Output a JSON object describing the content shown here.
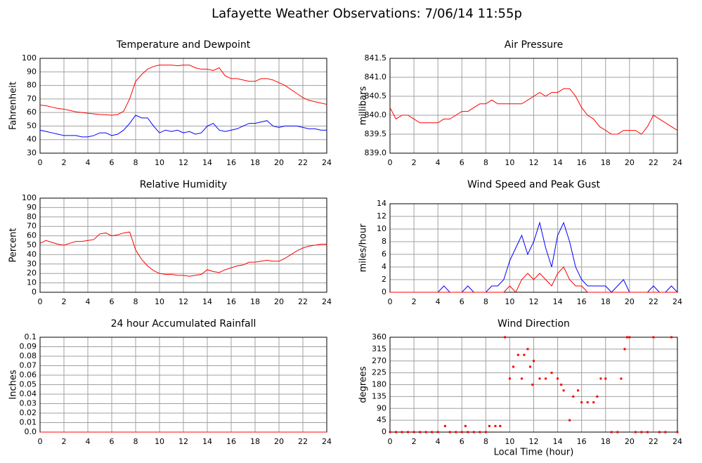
{
  "title": "Lafayette Weather Observations: 7/06/14 11:55p",
  "chart_data": [
    {
      "type": "line",
      "title": "Temperature and Dewpoint",
      "ylabel": "Fahrenheit",
      "x": [
        0,
        0.5,
        1,
        1.5,
        2,
        2.5,
        3,
        3.5,
        4,
        4.5,
        5,
        5.5,
        6,
        6.5,
        7,
        7.5,
        8,
        8.5,
        9,
        9.5,
        10,
        10.5,
        11,
        11.5,
        12,
        12.5,
        13,
        13.5,
        14,
        14.5,
        15,
        15.5,
        16,
        16.5,
        17,
        17.5,
        18,
        18.5,
        19,
        19.5,
        20,
        20.5,
        21,
        21.5,
        22,
        22.5,
        23,
        23.5,
        24
      ],
      "series": [
        {
          "color": "#ff0000",
          "values": [
            65.5,
            65,
            64,
            63,
            62.5,
            61.5,
            60.5,
            60,
            59.5,
            59,
            58.5,
            58.3,
            58,
            58.5,
            61,
            70,
            83,
            88,
            92,
            94,
            95,
            95,
            95,
            94.5,
            95,
            95,
            93,
            92,
            92,
            91,
            93,
            87,
            85,
            85,
            84,
            83,
            83,
            85,
            85,
            84,
            82,
            80,
            77,
            74,
            71,
            69,
            68,
            67,
            66
          ]
        },
        {
          "color": "#0000ff",
          "values": [
            47,
            46,
            45,
            44,
            43,
            43,
            43,
            42,
            42,
            43,
            45,
            45,
            43,
            44,
            47,
            52,
            58,
            56,
            56,
            50,
            45,
            47,
            46,
            47,
            45,
            46,
            44,
            45,
            50,
            52,
            47,
            46,
            47,
            48,
            50,
            52,
            52,
            53,
            54,
            50,
            49,
            50,
            50,
            50,
            49,
            48,
            48,
            47,
            47
          ]
        }
      ],
      "xlim": [
        0,
        24
      ],
      "xticks": [
        0,
        2,
        4,
        6,
        8,
        10,
        12,
        14,
        16,
        18,
        20,
        22,
        24
      ],
      "ylim": [
        30,
        100
      ],
      "yticks": [
        30,
        40,
        50,
        60,
        70,
        80,
        90,
        100
      ],
      "grid": true
    },
    {
      "type": "line",
      "title": "Air Pressure",
      "ylabel": "millibars",
      "x": [
        0,
        0.5,
        1,
        1.5,
        2,
        2.5,
        3,
        3.5,
        4,
        4.5,
        5,
        5.5,
        6,
        6.5,
        7,
        7.5,
        8,
        8.5,
        9,
        9.5,
        10,
        10.5,
        11,
        11.5,
        12,
        12.5,
        13,
        13.5,
        14,
        14.5,
        15,
        15.5,
        16,
        16.5,
        17,
        17.5,
        18,
        18.5,
        19,
        19.5,
        20,
        20.5,
        21,
        21.5,
        22,
        22.5,
        23,
        23.5,
        24
      ],
      "series": [
        {
          "color": "#ff0000",
          "values": [
            840.2,
            839.9,
            840,
            840,
            839.9,
            839.8,
            839.8,
            839.8,
            839.8,
            839.9,
            839.9,
            840,
            840.1,
            840.1,
            840.2,
            840.3,
            840.3,
            840.4,
            840.3,
            840.3,
            840.3,
            840.3,
            840.3,
            840.4,
            840.5,
            840.6,
            840.5,
            840.6,
            840.6,
            840.7,
            840.7,
            840.5,
            840.2,
            840,
            839.9,
            839.7,
            839.6,
            839.5,
            839.5,
            839.6,
            839.6,
            839.6,
            839.5,
            839.7,
            840,
            839.9,
            839.8,
            839.7,
            839.6
          ]
        }
      ],
      "xlim": [
        0,
        24
      ],
      "xticks": [
        0,
        2,
        4,
        6,
        8,
        10,
        12,
        14,
        16,
        18,
        20,
        22,
        24
      ],
      "ylim": [
        839,
        841.5
      ],
      "yticks": [
        {
          "value": 839,
          "label": "839.0"
        },
        839.5,
        {
          "value": 840,
          "label": "840.0"
        },
        840.5,
        {
          "value": 841,
          "label": "841.0"
        },
        841.5
      ],
      "grid": true
    },
    {
      "type": "line",
      "title": "Relative Humidity",
      "ylabel": "Percent",
      "x": [
        0,
        0.5,
        1,
        1.5,
        2,
        2.5,
        3,
        3.5,
        4,
        4.5,
        5,
        5.5,
        6,
        6.5,
        7,
        7.5,
        8,
        8.5,
        9,
        9.5,
        10,
        10.5,
        11,
        11.5,
        12,
        12.5,
        13,
        13.5,
        14,
        14.5,
        15,
        15.5,
        16,
        16.5,
        17,
        17.5,
        18,
        18.5,
        19,
        19.5,
        20,
        20.5,
        21,
        21.5,
        22,
        22.5,
        23,
        23.5,
        24
      ],
      "series": [
        {
          "color": "#ff0000",
          "values": [
            52,
            55,
            53,
            51,
            50,
            52,
            54,
            54,
            55,
            56,
            62,
            63,
            60,
            61,
            63,
            64,
            45,
            35,
            28,
            23,
            20,
            19,
            19,
            18,
            18,
            17,
            18,
            19,
            24,
            22,
            21,
            24,
            26,
            28,
            29,
            32,
            32,
            33,
            34,
            33,
            33,
            36,
            40,
            44,
            47,
            49,
            50,
            51,
            51
          ]
        }
      ],
      "xlim": [
        0,
        24
      ],
      "xticks": [
        0,
        2,
        4,
        6,
        8,
        10,
        12,
        14,
        16,
        18,
        20,
        22,
        24
      ],
      "ylim": [
        0,
        100
      ],
      "yticks": [
        0,
        10,
        20,
        30,
        40,
        50,
        60,
        70,
        80,
        90,
        100
      ],
      "grid": true
    },
    {
      "type": "line",
      "title": "Wind Speed and Peak Gust",
      "ylabel": "miles/hour",
      "x": [
        0,
        0.5,
        1,
        1.5,
        2,
        2.5,
        3,
        3.5,
        4,
        4.5,
        5,
        5.5,
        6,
        6.5,
        7,
        7.5,
        8,
        8.5,
        9,
        9.5,
        10,
        10.5,
        11,
        11.5,
        12,
        12.5,
        13,
        13.5,
        14,
        14.5,
        15,
        15.5,
        16,
        16.5,
        17,
        17.5,
        18,
        18.5,
        19,
        19.5,
        20,
        20.5,
        21,
        21.5,
        22,
        22.5,
        23,
        23.5,
        24
      ],
      "series": [
        {
          "color": "#0000ff",
          "values": [
            0,
            0,
            0,
            0,
            0,
            0,
            0,
            0,
            0,
            1,
            0,
            0,
            0,
            1,
            0,
            0,
            0,
            1,
            1,
            2,
            5,
            7,
            9,
            6,
            8,
            11,
            7,
            4,
            9,
            11,
            8,
            4,
            2,
            1,
            1,
            1,
            1,
            0,
            1,
            2,
            0,
            0,
            0,
            0,
            1,
            0,
            0,
            1,
            0
          ]
        },
        {
          "color": "#ff0000",
          "values": [
            0,
            0,
            0,
            0,
            0,
            0,
            0,
            0,
            0,
            0,
            0,
            0,
            0,
            0,
            0,
            0,
            0,
            0,
            0,
            0,
            1,
            0,
            2,
            3,
            2,
            3,
            2,
            1,
            3,
            4,
            2,
            1,
            1,
            0,
            0,
            0,
            0,
            0,
            0,
            0,
            0,
            0,
            0,
            0,
            0,
            0,
            0,
            0,
            0
          ]
        }
      ],
      "xlim": [
        0,
        24
      ],
      "xticks": [
        0,
        2,
        4,
        6,
        8,
        10,
        12,
        14,
        16,
        18,
        20,
        22,
        24
      ],
      "ylim": [
        0,
        14
      ],
      "yticks": [
        0,
        2,
        4,
        6,
        8,
        10,
        12,
        14
      ],
      "grid": true
    },
    {
      "type": "line",
      "title": "24 hour Accumulated Rainfall",
      "ylabel": "Inches",
      "x": [
        0,
        24
      ],
      "series": [
        {
          "color": "#ff0000",
          "values": [
            0,
            0
          ]
        }
      ],
      "xlim": [
        0,
        24
      ],
      "xticks": [
        0,
        2,
        4,
        6,
        8,
        10,
        12,
        14,
        16,
        18,
        20,
        22,
        24
      ],
      "ylim": [
        0,
        0.1
      ],
      "yticks": [
        {
          "value": 0,
          "label": "0.0"
        },
        0.01,
        0.02,
        0.03,
        0.04,
        0.05,
        0.06,
        0.07,
        0.08,
        0.09,
        0.1
      ],
      "grid": true
    },
    {
      "type": "scatter",
      "title": "Wind Direction",
      "ylabel": "degrees",
      "xlabel": "Local Time (hour)",
      "x": [
        0,
        0.5,
        1,
        1.5,
        2,
        2.5,
        3,
        3.5,
        4,
        4.6,
        5,
        5.5,
        6,
        6.3,
        6.5,
        7,
        7.5,
        8,
        8.3,
        8.8,
        9.2,
        9.6,
        10,
        10.3,
        10.7,
        11,
        11.2,
        11.5,
        11.7,
        11.9,
        12,
        12.5,
        13,
        13.5,
        14,
        14.3,
        14.5,
        15,
        15.3,
        15.7,
        16,
        16.5,
        17,
        17.3,
        17.6,
        18,
        18.5,
        19,
        19.3,
        19.6,
        19.8,
        20,
        20.5,
        21,
        21.5,
        22,
        22.5,
        23,
        23.5,
        24
      ],
      "series": [
        {
          "color": "#ff0000",
          "values": [
            0,
            0,
            0,
            0,
            0,
            0,
            0,
            0,
            0,
            23,
            0,
            0,
            0,
            23,
            0,
            0,
            0,
            0,
            23,
            23,
            23,
            360,
            203,
            248,
            293,
            203,
            293,
            315,
            248,
            180,
            270,
            203,
            203,
            225,
            203,
            180,
            158,
            45,
            135,
            158,
            113,
            113,
            113,
            135,
            203,
            203,
            0,
            0,
            203,
            315,
            360,
            360,
            0,
            0,
            0,
            360,
            0,
            0,
            360,
            0
          ]
        }
      ],
      "xlim": [
        0,
        24
      ],
      "xticks": [
        0,
        2,
        4,
        6,
        8,
        10,
        12,
        14,
        16,
        18,
        20,
        22,
        24
      ],
      "ylim": [
        0,
        360
      ],
      "yticks": [
        0,
        45,
        90,
        135,
        180,
        225,
        270,
        315,
        360
      ],
      "grid": true
    }
  ]
}
